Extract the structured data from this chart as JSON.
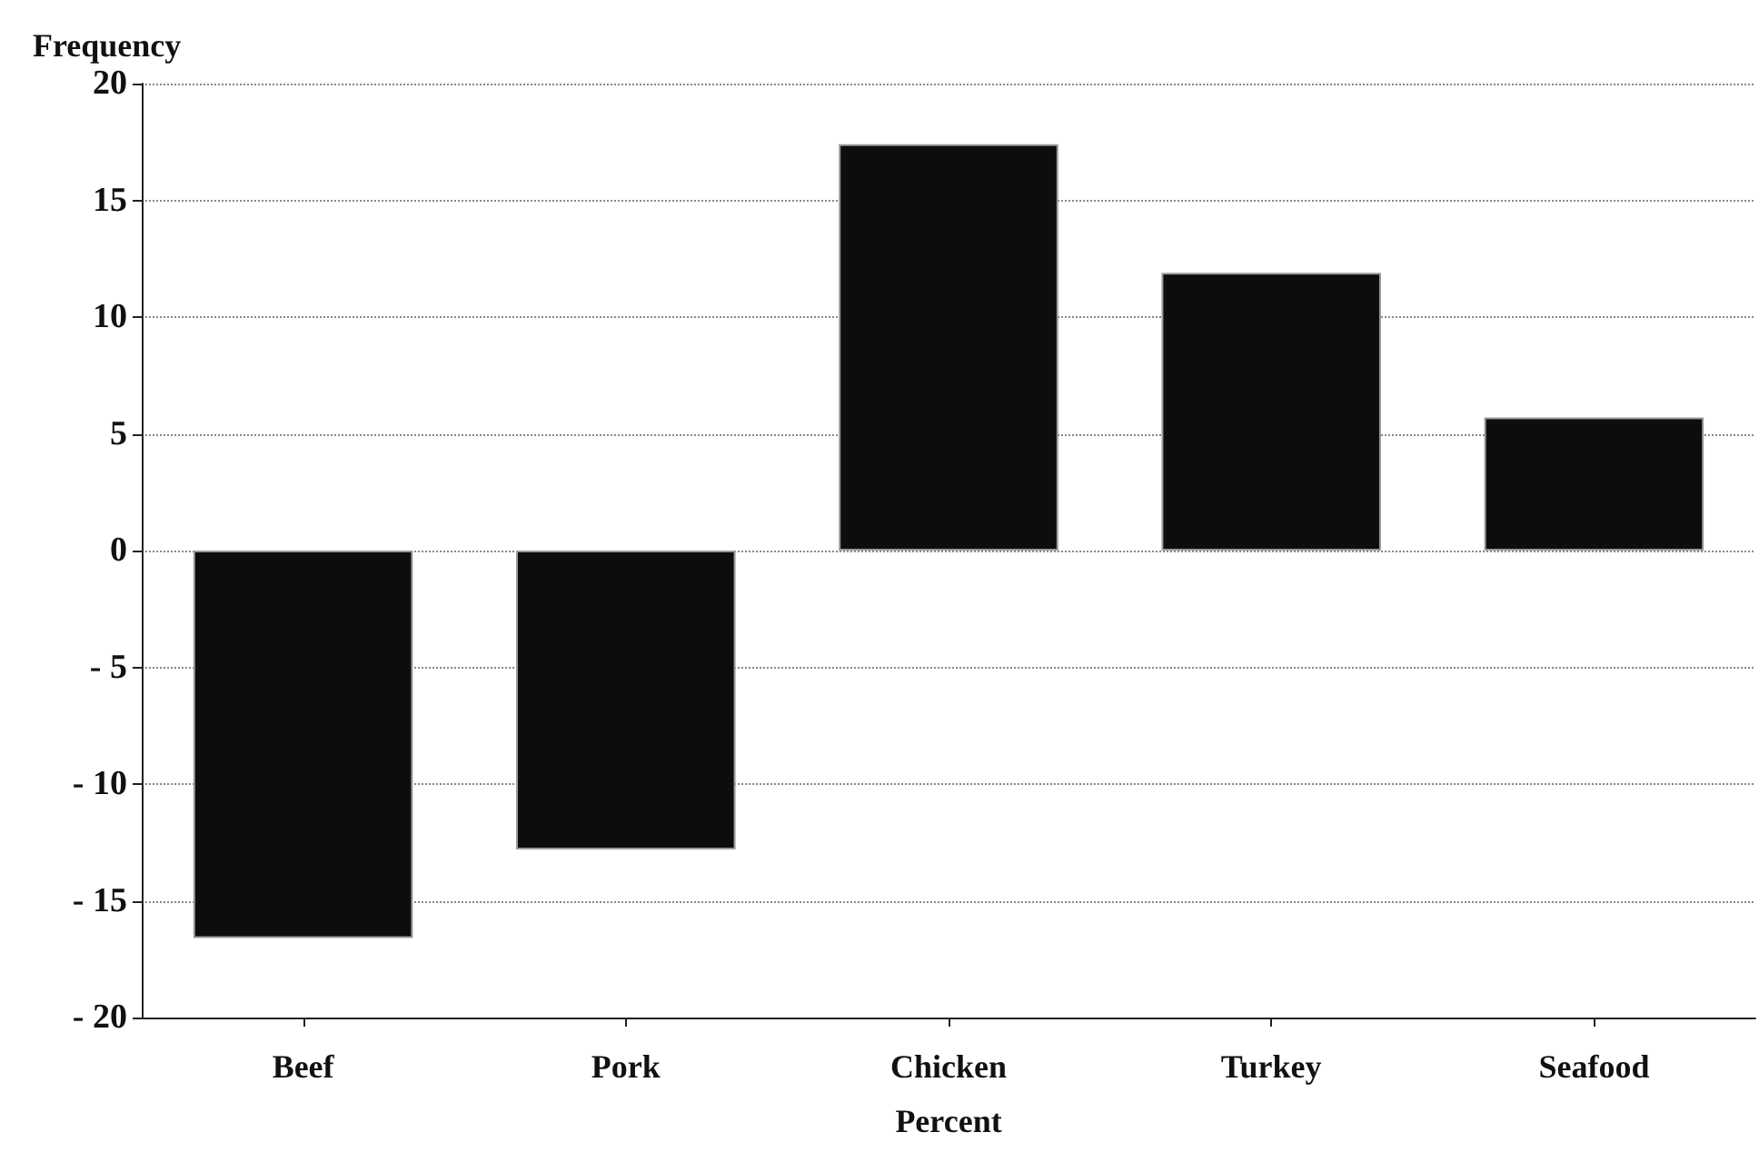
{
  "chart_data": {
    "type": "bar",
    "ylabel": "Frequency",
    "xlabel": "Percent",
    "categories": [
      "Beef",
      "Pork",
      "Chicken",
      "Turkey",
      "Seafood"
    ],
    "values": [
      -16.6,
      -12.8,
      17.4,
      11.9,
      5.7
    ],
    "color": "#0d0d0d",
    "ylim": [
      -20,
      20
    ],
    "yticks": [
      -20,
      -15,
      -10,
      -5,
      0,
      5,
      10,
      15,
      20
    ],
    "grid": "y"
  }
}
